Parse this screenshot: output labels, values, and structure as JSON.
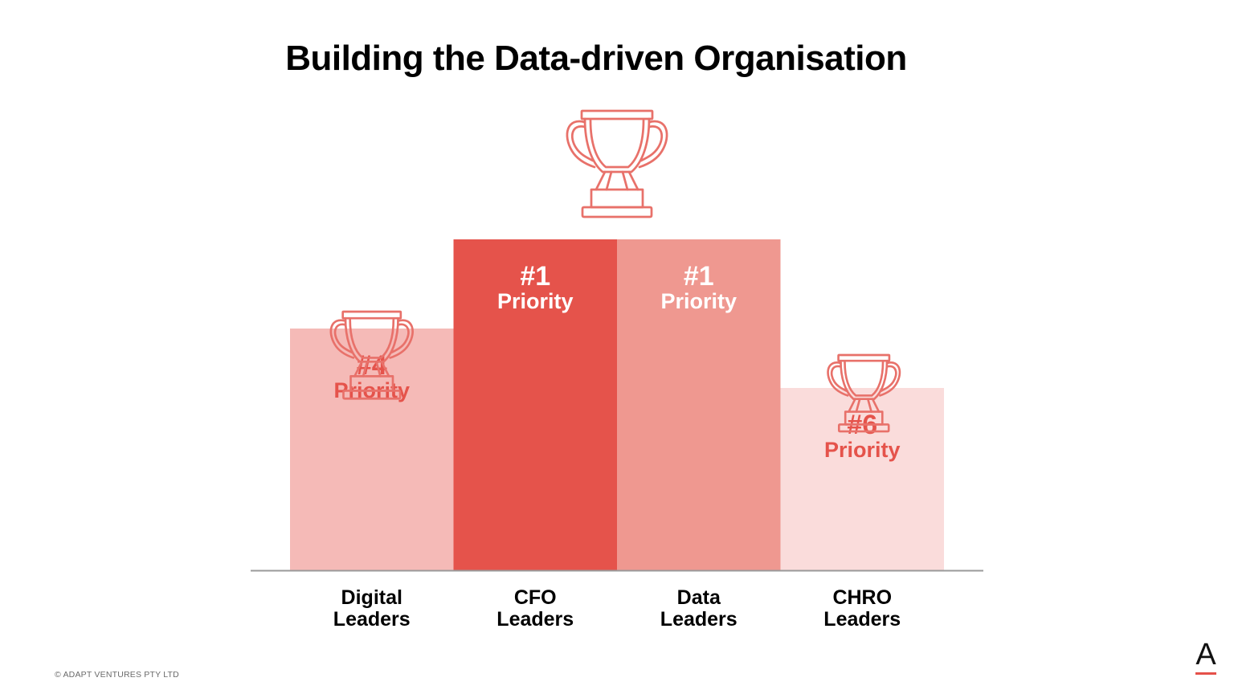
{
  "page": {
    "title": "Building the Data-driven Organisation",
    "footer": "© ADAPT VENTURES PTY LTD",
    "brand_letter": "A"
  },
  "colors": {
    "accent": "#e5514a",
    "bar_cfo": "#e5534b",
    "bar_data": "#ef9890",
    "bar_digital": "#f5bab7",
    "bar_chro": "#fadcdb",
    "trophy": "#e8716a",
    "baseline": "#9a9a9a"
  },
  "chart_data": {
    "type": "bar",
    "title": "Building the Data-driven Organisation",
    "xlabel": "",
    "ylabel": "",
    "grid": false,
    "categories": [
      "Digital\nLeaders",
      "CFO\nLeaders",
      "Data\nLeaders",
      "CHRO\nLeaders"
    ],
    "series": [
      {
        "values": [
          4,
          1,
          1,
          6
        ],
        "labels": [
          {
            "rank": "#4",
            "text": "Priority"
          },
          {
            "rank": "#1",
            "text": "Priority"
          },
          {
            "rank": "#1",
            "text": "Priority"
          },
          {
            "rank": "#6",
            "text": "Priority"
          }
        ]
      }
    ],
    "annotations": [
      "trophy-icon above top-ranked group",
      "trophy-icon above Digital Leaders",
      "trophy-icon above CHRO Leaders"
    ]
  }
}
